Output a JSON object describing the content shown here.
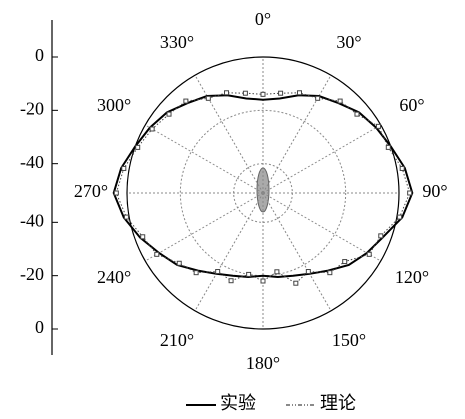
{
  "chart_data": {
    "type": "polar",
    "x": [
      0,
      10,
      20,
      30,
      40,
      50,
      60,
      70,
      80,
      90,
      100,
      110,
      120,
      130,
      140,
      150,
      160,
      170,
      180,
      190,
      200,
      210,
      220,
      230,
      240,
      250,
      260,
      270,
      280,
      290,
      300,
      310,
      320,
      330,
      340,
      350
    ],
    "series": [
      {
        "name": "实验",
        "color": "#000000",
        "style": "solid",
        "values": [
          -16,
          -15,
          -12,
          -9,
          -7,
          -4,
          -2,
          0,
          3,
          5,
          2,
          -3,
          -6,
          -9,
          -13,
          -16,
          -18,
          -19,
          -20,
          -19,
          -18,
          -16,
          -13,
          -9,
          -6,
          -2,
          2,
          5,
          3,
          0,
          -2,
          -4,
          -7,
          -9,
          -12,
          -15
        ]
      },
      {
        "name": "理论",
        "color": "#444444",
        "style": "dotted",
        "values": [
          -14,
          -13,
          -11,
          -10,
          -6,
          -5,
          -1,
          -1,
          2,
          4,
          1,
          -4,
          -5,
          -11,
          -12,
          -17,
          -15,
          -21,
          -18,
          -20,
          -16,
          -17,
          -12,
          -10,
          -5,
          -3,
          1,
          4,
          2,
          -1,
          -3,
          -5,
          -6,
          -10,
          -11,
          -13
        ]
      }
    ],
    "ylim": [
      -51,
      0
    ],
    "yticks": [
      0,
      -20,
      -40
    ],
    "xticks": [
      {
        "value": 0,
        "label": "0°"
      },
      {
        "value": 30,
        "label": "30°"
      },
      {
        "value": 60,
        "label": "60°"
      },
      {
        "value": 90,
        "label": "90°"
      },
      {
        "value": 120,
        "label": "120°"
      },
      {
        "value": 150,
        "label": "150°"
      },
      {
        "value": 180,
        "label": "180°"
      },
      {
        "value": 210,
        "label": "210°"
      },
      {
        "value": 240,
        "label": "240°"
      },
      {
        "value": 270,
        "label": "270°"
      },
      {
        "value": 300,
        "label": "300°"
      },
      {
        "value": 330,
        "label": "330°"
      }
    ],
    "grid": true
  }
}
